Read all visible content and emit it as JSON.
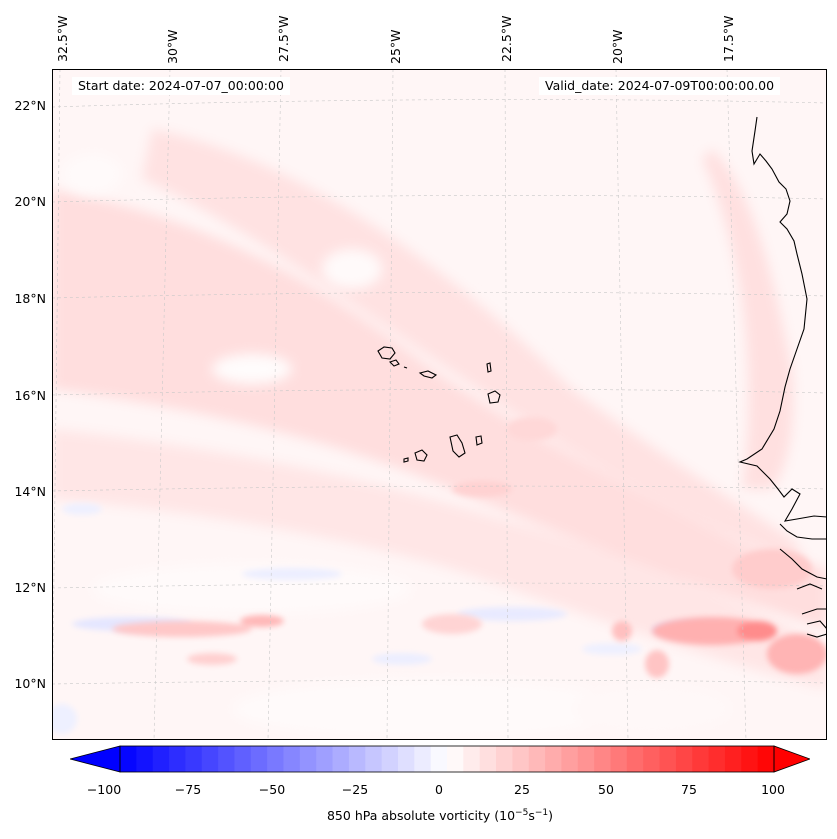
{
  "header": {
    "start_date": "Start date: 2024-07-07_00:00:00",
    "valid_date": "Valid_date: 2024-07-09T00:00:00.00"
  },
  "longitude_labels": [
    "32.5°W",
    "30°W",
    "27.5°W",
    "25°W",
    "22.5°W",
    "20°W",
    "17.5°W"
  ],
  "latitude_labels": [
    "22°N",
    "20°N",
    "18°N",
    "16°N",
    "14°N",
    "12°N",
    "10°N"
  ],
  "colorbar": {
    "ticks": [
      "−100",
      "−75",
      "−50",
      "−25",
      "0",
      "25",
      "50",
      "75",
      "100"
    ],
    "label_main": "850 hPa absolute vorticity (10",
    "label_exp1": "−5",
    "label_mid": "s",
    "label_exp2": "−1",
    "label_end": ")",
    "range": [
      -100,
      100
    ],
    "colormap": "bwr",
    "extend": "both"
  },
  "colors": {
    "coastline": "#000000",
    "gridline": "#c8c8c8",
    "negative_max": "#0000ff",
    "positive_max": "#ff0000",
    "neutral": "#ffffff"
  }
}
